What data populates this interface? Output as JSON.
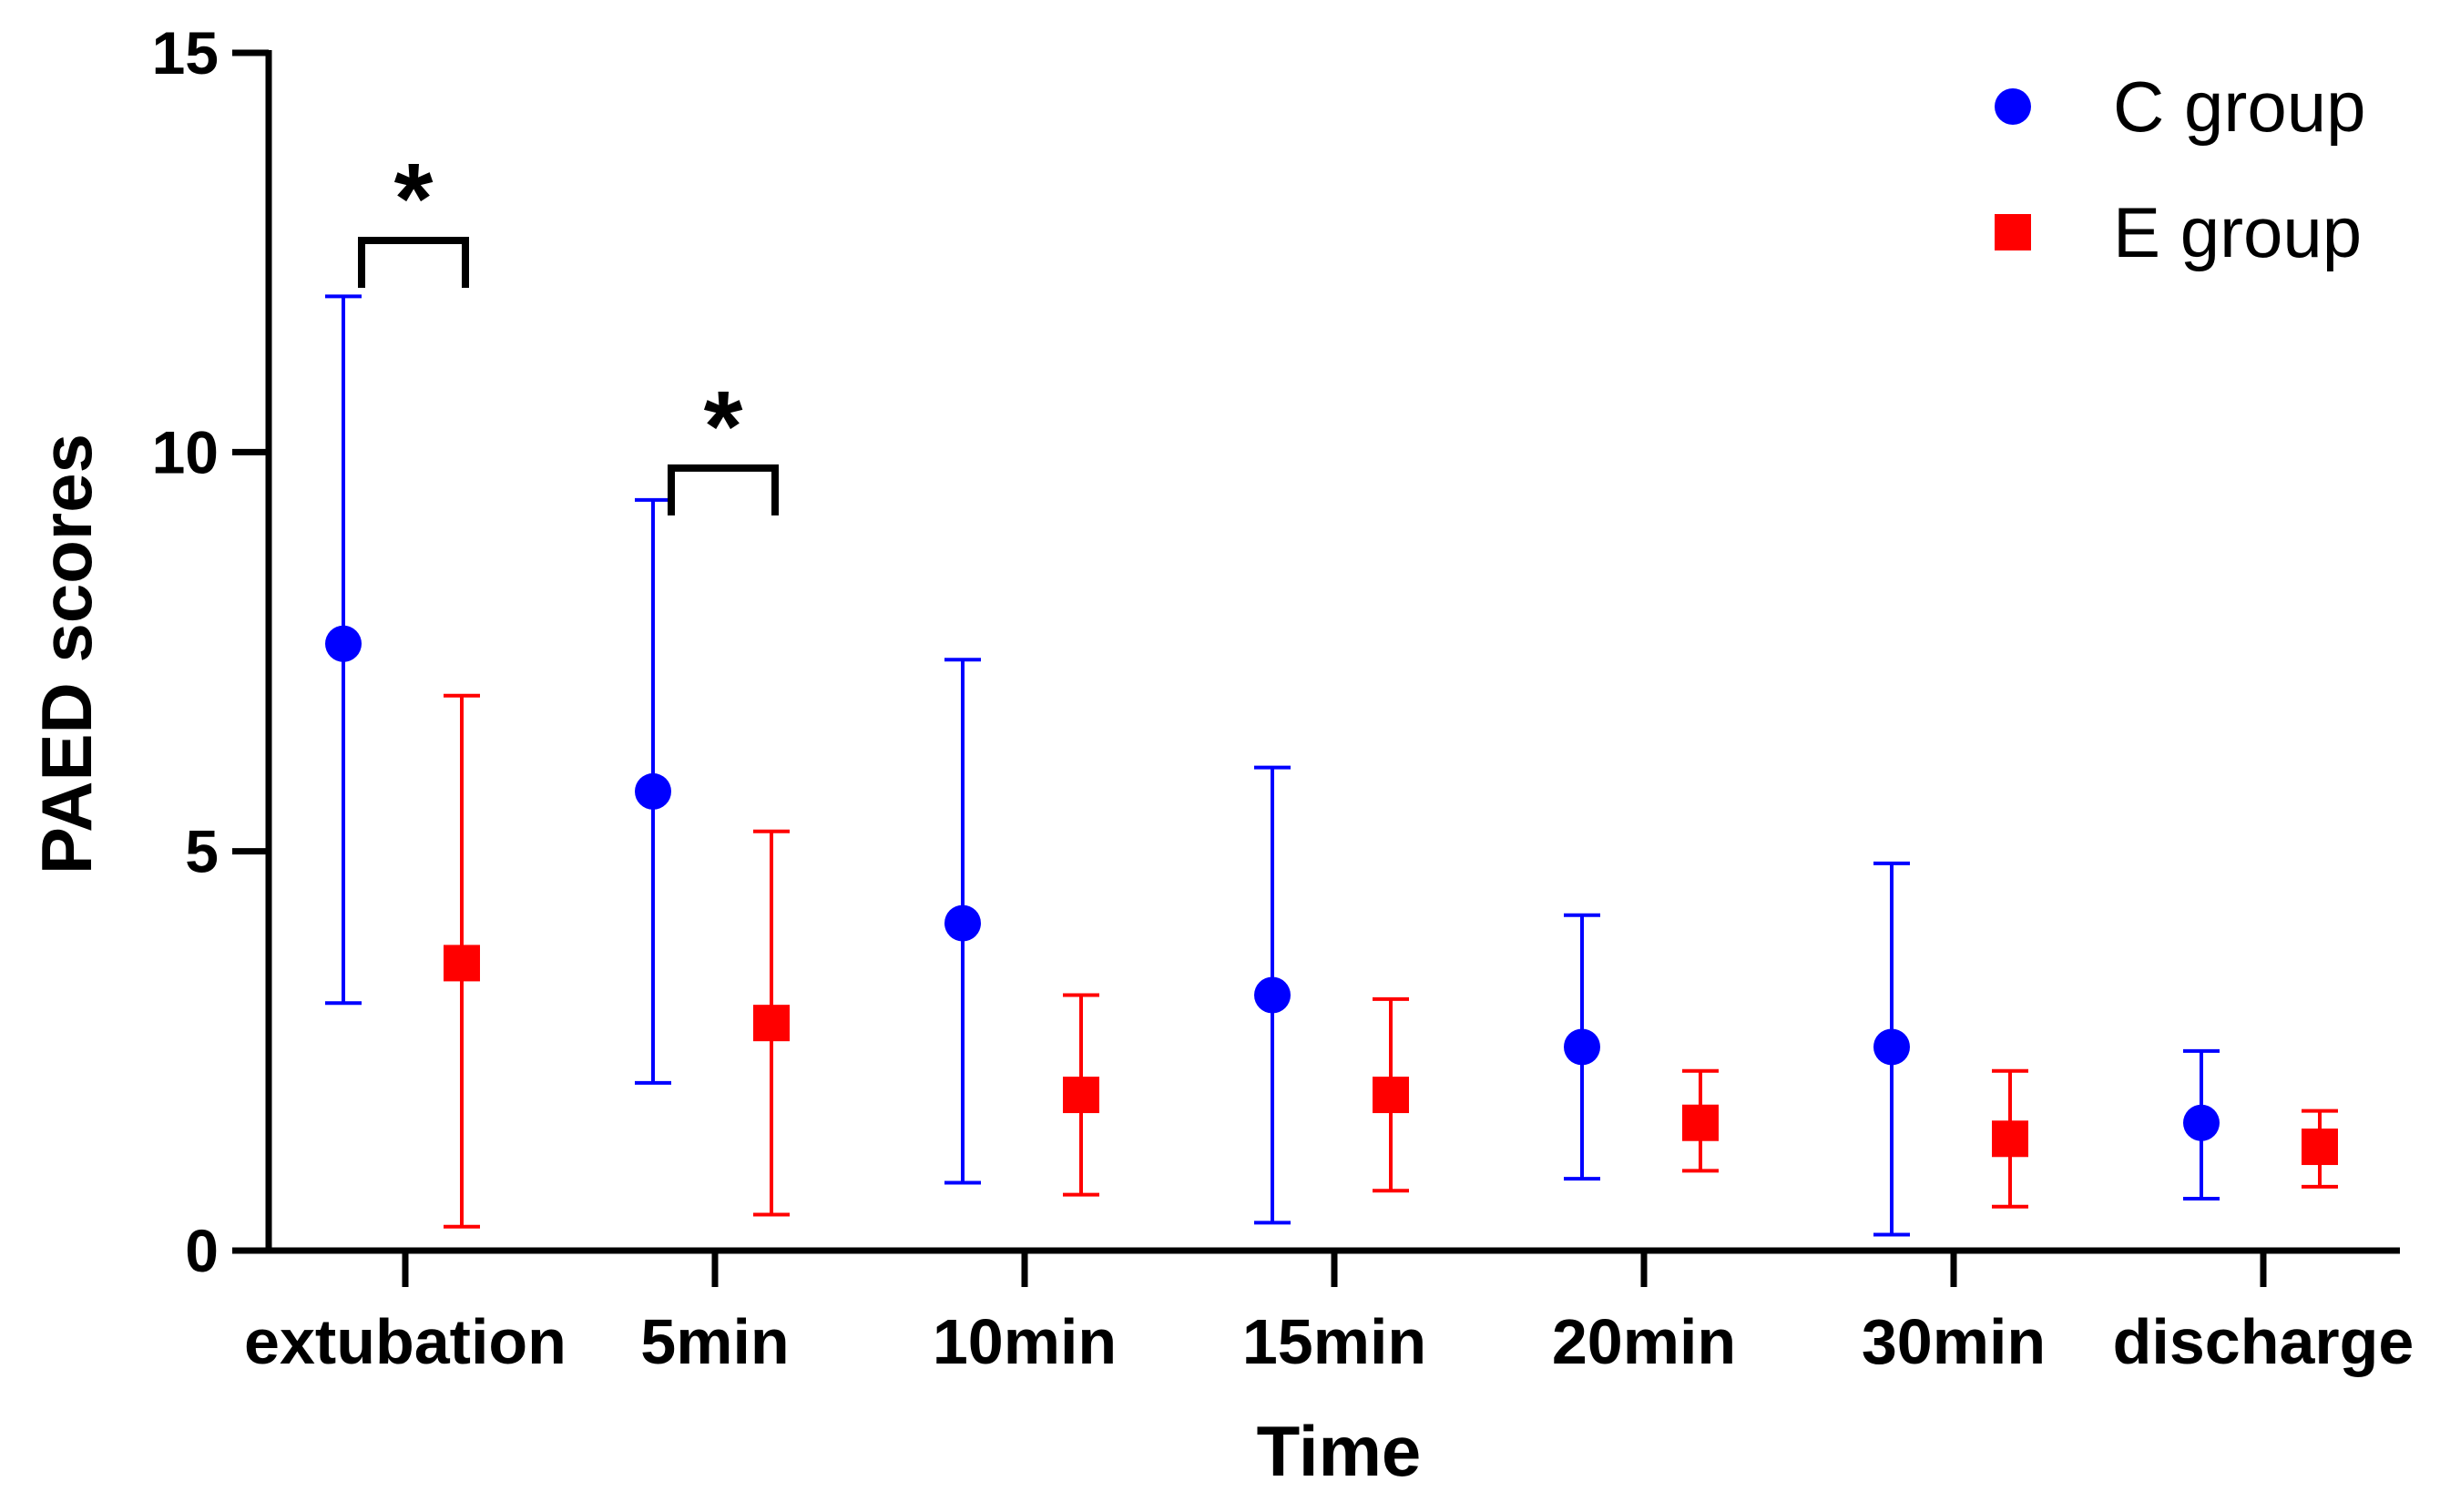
{
  "chart_data": {
    "type": "scatter",
    "xlabel": "Time",
    "ylabel": "PAED scores",
    "ylim": [
      0,
      15
    ],
    "yticks": [
      0,
      5,
      10,
      15
    ],
    "categories": [
      "extubation",
      "5min",
      "10min",
      "15min",
      "20min",
      "30min",
      "discharge"
    ],
    "grid": false,
    "legend_position": "top-right",
    "series": [
      {
        "name": "C group",
        "color": "#0000ff",
        "marker": "circle",
        "values": [
          7.6,
          5.75,
          4.1,
          3.2,
          2.55,
          2.55,
          1.6
        ],
        "err_low": [
          3.1,
          2.1,
          0.85,
          0.35,
          0.9,
          0.2,
          0.65
        ],
        "err_high": [
          11.95,
          9.4,
          7.4,
          6.05,
          4.2,
          4.85,
          2.5
        ]
      },
      {
        "name": "E group",
        "color": "#ff0000",
        "marker": "square",
        "values": [
          3.6,
          2.85,
          1.95,
          1.95,
          1.6,
          1.4,
          1.3
        ],
        "err_low": [
          0.3,
          0.45,
          0.7,
          0.75,
          1.0,
          0.55,
          0.8
        ],
        "err_high": [
          6.95,
          5.25,
          3.2,
          3.15,
          2.25,
          2.25,
          1.75
        ]
      }
    ],
    "annotations": [
      {
        "category_index": 0,
        "text": "*",
        "bracket_y": 12.65
      },
      {
        "category_index": 1,
        "text": "*",
        "bracket_y": 9.8
      }
    ]
  }
}
